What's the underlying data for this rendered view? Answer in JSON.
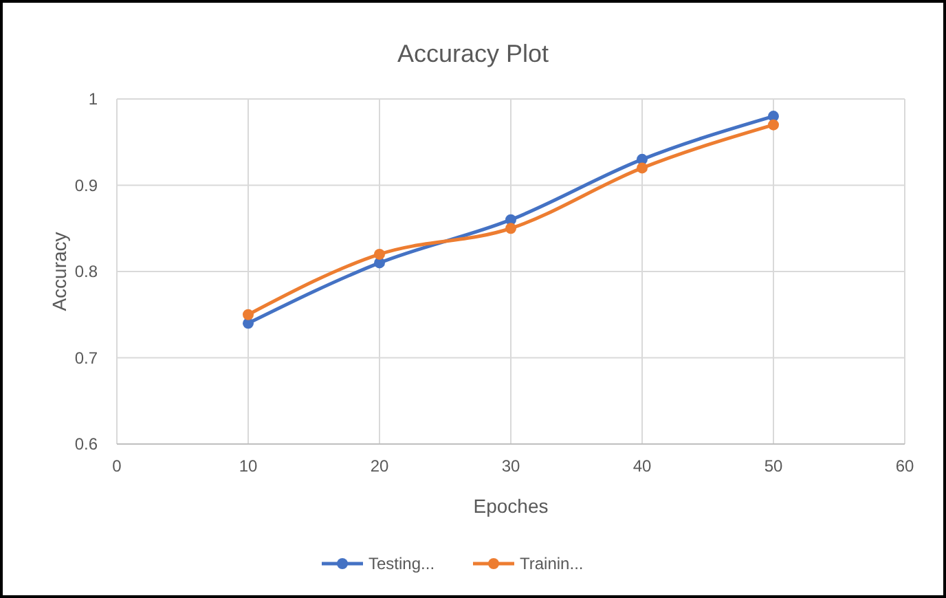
{
  "chart_data": {
    "type": "line",
    "title": "Accuracy Plot",
    "xlabel": "Epoches",
    "ylabel": "Accuracy",
    "x": [
      10,
      20,
      30,
      40,
      50
    ],
    "series": [
      {
        "name": "Testing...",
        "color": "#4472c4",
        "values": [
          0.74,
          0.81,
          0.86,
          0.93,
          0.98
        ]
      },
      {
        "name": "Trainin...",
        "color": "#ed7d31",
        "values": [
          0.75,
          0.82,
          0.85,
          0.92,
          0.97
        ]
      }
    ],
    "xlim": [
      0,
      60
    ],
    "xticks": [
      0,
      10,
      20,
      30,
      40,
      50,
      60
    ],
    "ylim": [
      0.6,
      1
    ],
    "yticks": [
      0.6,
      0.7,
      0.8,
      0.9,
      1
    ],
    "grid": true,
    "legend": "bottom",
    "marker": "circle",
    "line_style": "solid"
  }
}
